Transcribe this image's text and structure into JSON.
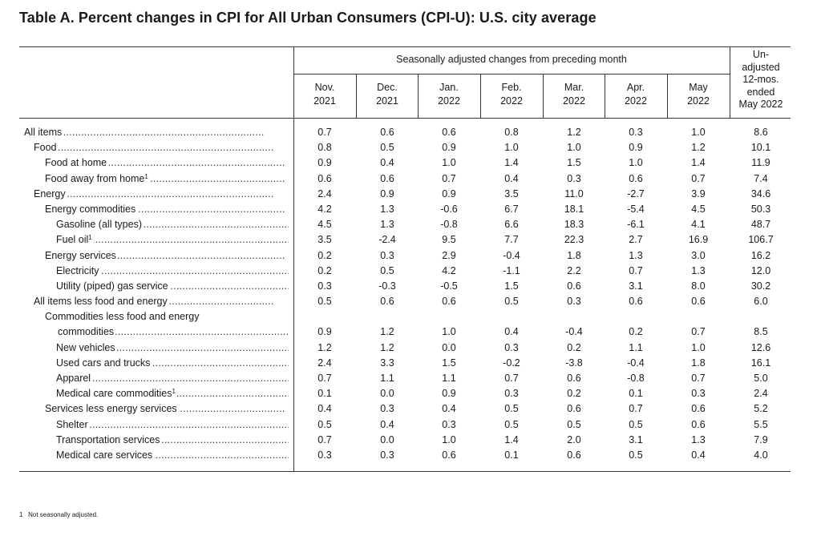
{
  "title": "Table A. Percent changes in CPI for All Urban Consumers (CPI-U): U.S. city average",
  "group_header": "Seasonally adjusted changes from preceding month",
  "columns": [
    {
      "line1": "Nov.",
      "line2": "2021"
    },
    {
      "line1": "Dec.",
      "line2": "2021"
    },
    {
      "line1": "Jan.",
      "line2": "2022"
    },
    {
      "line1": "Feb.",
      "line2": "2022"
    },
    {
      "line1": "Mar.",
      "line2": "2022"
    },
    {
      "line1": "Apr.",
      "line2": "2022"
    },
    {
      "line1": "May",
      "line2": "2022"
    }
  ],
  "unadjusted_header": [
    "Un-",
    "adjusted",
    "12-mos.",
    "ended",
    "May 2022"
  ],
  "rows": [
    {
      "label": "All items",
      "sup": "",
      "values": [
        "0.7",
        "0.6",
        "0.6",
        "0.8",
        "1.2",
        "0.3",
        "1.0",
        "8.6"
      ]
    },
    {
      "label": "Food",
      "sup": "",
      "values": [
        "0.8",
        "0.5",
        "0.9",
        "1.0",
        "1.0",
        "0.9",
        "1.2",
        "10.1"
      ]
    },
    {
      "label": "Food at home",
      "sup": "",
      "values": [
        "0.9",
        "0.4",
        "1.0",
        "1.4",
        "1.5",
        "1.0",
        "1.4",
        "11.9"
      ]
    },
    {
      "label": "Food away from home",
      "sup": "1",
      "values": [
        "0.6",
        "0.6",
        "0.7",
        "0.4",
        "0.3",
        "0.6",
        "0.7",
        "7.4"
      ]
    },
    {
      "label": "Energy",
      "sup": "",
      "values": [
        "2.4",
        "0.9",
        "0.9",
        "3.5",
        "11.0",
        "-2.7",
        "3.9",
        "34.6"
      ]
    },
    {
      "label": "Energy commodities",
      "sup": "",
      "values": [
        "4.2",
        "1.3",
        "-0.6",
        "6.7",
        "18.1",
        "-5.4",
        "4.5",
        "50.3"
      ]
    },
    {
      "label": "Gasoline (all types)",
      "sup": "",
      "values": [
        "4.5",
        "1.3",
        "-0.8",
        "6.6",
        "18.3",
        "-6.1",
        "4.1",
        "48.7"
      ]
    },
    {
      "label": "Fuel oil",
      "sup": "1",
      "values": [
        "3.5",
        "-2.4",
        "9.5",
        "7.7",
        "22.3",
        "2.7",
        "16.9",
        "106.7"
      ]
    },
    {
      "label": "Energy services",
      "sup": "",
      "values": [
        "0.2",
        "0.3",
        "2.9",
        "-0.4",
        "1.8",
        "1.3",
        "3.0",
        "16.2"
      ]
    },
    {
      "label": "Electricity",
      "sup": "",
      "values": [
        "0.2",
        "0.5",
        "4.2",
        "-1.1",
        "2.2",
        "0.7",
        "1.3",
        "12.0"
      ]
    },
    {
      "label": "Utility (piped) gas service",
      "sup": "",
      "values": [
        "0.3",
        "-0.3",
        "-0.5",
        "1.5",
        "0.6",
        "3.1",
        "8.0",
        "30.2"
      ]
    },
    {
      "label": "All items less food and energy",
      "sup": "",
      "values": [
        "0.5",
        "0.6",
        "0.6",
        "0.5",
        "0.3",
        "0.6",
        "0.6",
        "6.0"
      ]
    },
    {
      "label_top": "Commodities less food and energy",
      "label": "commodities",
      "sup": "",
      "values": [
        "0.9",
        "1.2",
        "1.0",
        "0.4",
        "-0.4",
        "0.2",
        "0.7",
        "8.5"
      ]
    },
    {
      "label": "New vehicles",
      "sup": "",
      "values": [
        "1.2",
        "1.2",
        "0.0",
        "0.3",
        "0.2",
        "1.1",
        "1.0",
        "12.6"
      ]
    },
    {
      "label": "Used cars and trucks",
      "sup": "",
      "values": [
        "2.4",
        "3.3",
        "1.5",
        "-0.2",
        "-3.8",
        "-0.4",
        "1.8",
        "16.1"
      ]
    },
    {
      "label": "Apparel",
      "sup": "",
      "values": [
        "0.7",
        "1.1",
        "1.1",
        "0.7",
        "0.6",
        "-0.8",
        "0.7",
        "5.0"
      ]
    },
    {
      "label": "Medical care commodities",
      "sup": "1",
      "values": [
        "0.1",
        "0.0",
        "0.9",
        "0.3",
        "0.2",
        "0.1",
        "0.3",
        "2.4"
      ]
    },
    {
      "label": "Services less energy services",
      "sup": "",
      "values": [
        "0.4",
        "0.3",
        "0.4",
        "0.5",
        "0.6",
        "0.7",
        "0.6",
        "5.2"
      ]
    },
    {
      "label": "Shelter",
      "sup": "",
      "values": [
        "0.5",
        "0.4",
        "0.3",
        "0.5",
        "0.5",
        "0.5",
        "0.6",
        "5.5"
      ]
    },
    {
      "label": "Transportation services",
      "sup": "",
      "values": [
        "0.7",
        "0.0",
        "1.0",
        "1.4",
        "2.0",
        "3.1",
        "1.3",
        "7.9"
      ]
    },
    {
      "label": "Medical care services",
      "sup": "",
      "values": [
        "0.3",
        "0.3",
        "0.6",
        "0.1",
        "0.6",
        "0.5",
        "0.4",
        "4.0"
      ]
    }
  ],
  "footnote": {
    "mark": "1",
    "text": "Not seasonally adjusted."
  }
}
